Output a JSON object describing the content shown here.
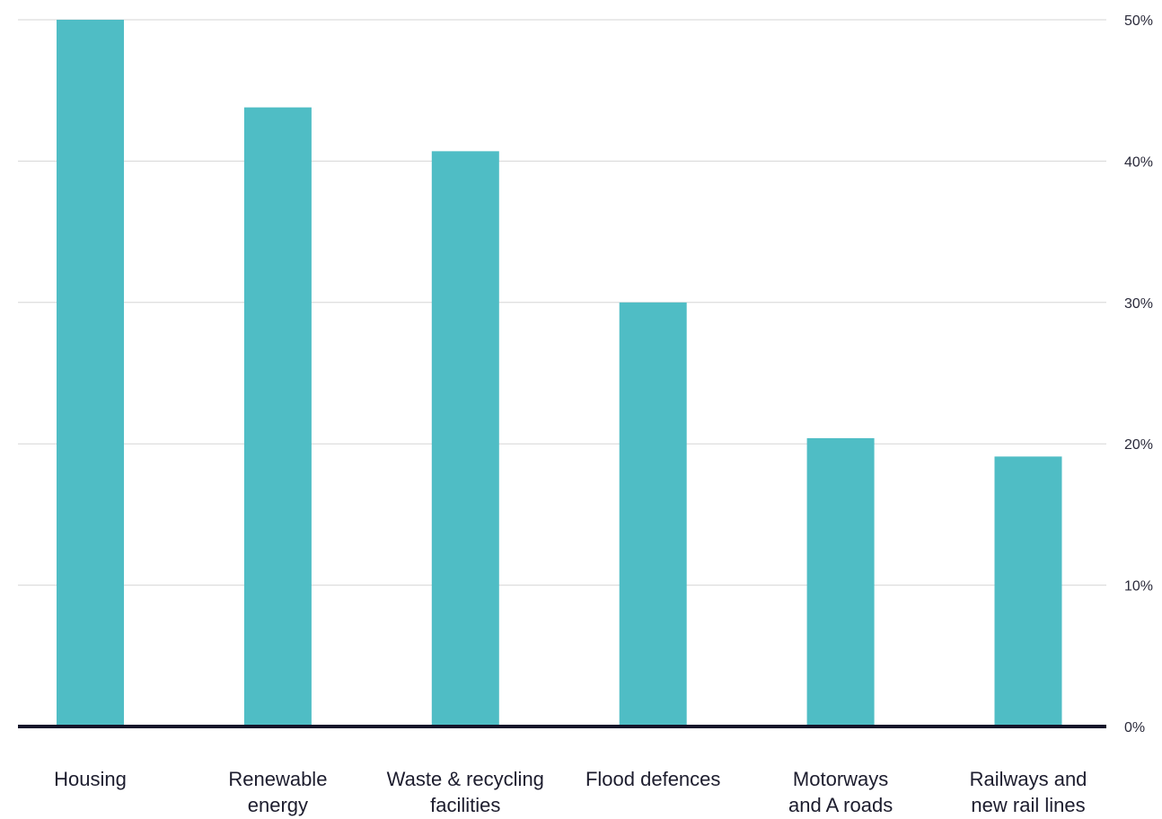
{
  "chart_data": {
    "type": "bar",
    "categories": [
      [
        "Housing"
      ],
      [
        "Renewable",
        "energy"
      ],
      [
        "Waste & recycling",
        "facilities"
      ],
      [
        "Flood defences"
      ],
      [
        "Motorways",
        "and A roads"
      ],
      [
        "Railways and",
        "new rail lines"
      ]
    ],
    "values": [
      50,
      43.8,
      40.7,
      30,
      20.4,
      19.1
    ],
    "ylim": [
      0,
      50
    ],
    "yticks": [
      0,
      10,
      20,
      30,
      40,
      50
    ],
    "ytick_labels": [
      "0%",
      "10%",
      "20%",
      "30%",
      "40%",
      "50%"
    ],
    "y_axis_side": "right",
    "grid": true,
    "bar_color": "#4fbdc5",
    "baseline_color": "#14142a"
  }
}
